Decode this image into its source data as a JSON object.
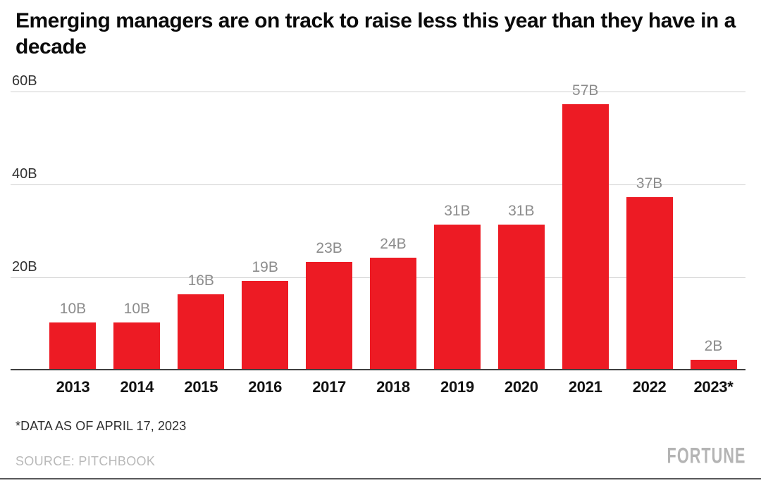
{
  "header": {
    "title": "Emerging managers are on track to raise less this year than they have in a decade"
  },
  "chart_data": {
    "type": "bar",
    "title": "Emerging managers are on track to raise less this year than they have in a decade",
    "categories": [
      "2013",
      "2014",
      "2015",
      "2016",
      "2017",
      "2018",
      "2019",
      "2020",
      "2021",
      "2022",
      "2023*"
    ],
    "values": [
      10,
      10,
      16,
      19,
      23,
      24,
      31,
      31,
      57,
      37,
      2
    ],
    "bar_labels": [
      "10B",
      "10B",
      "16B",
      "19B",
      "23B",
      "24B",
      "31B",
      "31B",
      "57B",
      "37B",
      "2B"
    ],
    "xlabel": "",
    "ylabel": "",
    "ylim": [
      0,
      65
    ],
    "y_ticks": [
      {
        "value": 20,
        "label": "20B"
      },
      {
        "value": 40,
        "label": "40B"
      },
      {
        "value": 60,
        "label": "60B"
      }
    ],
    "grid": true,
    "legend": false,
    "bar_color": "#ED1B24",
    "label_color": "#8C8C8C",
    "gridline_color": "#CFCFCF",
    "axis_color": "#404040"
  },
  "footer": {
    "footnote": "*DATA AS OF APRIL 17, 2023",
    "source": "SOURCE: PITCHBOOK",
    "brand": "FORTUNE"
  }
}
